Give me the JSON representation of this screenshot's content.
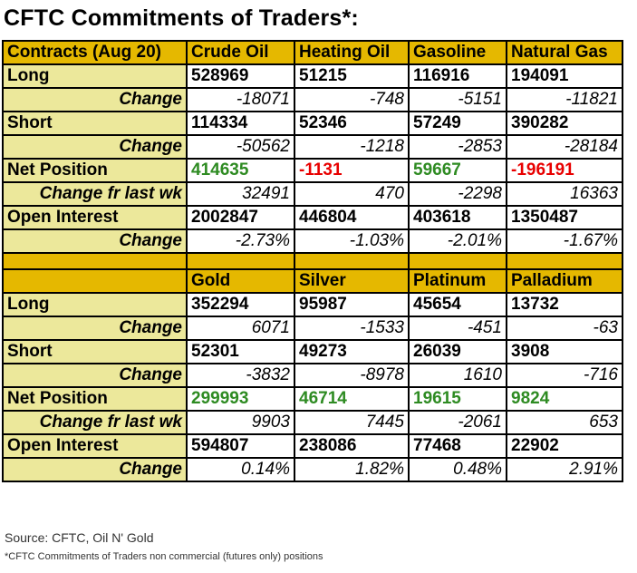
{
  "title": "CFTC Commitments of Traders*:",
  "energy": {
    "header": [
      "Contracts (Aug 20)",
      "Crude Oil",
      "Heating Oil",
      "Gasoline",
      "Natural Gas"
    ],
    "long": [
      "Long",
      "528969",
      "51215",
      "116916",
      "194091"
    ],
    "long_change": [
      "Change",
      "-18071",
      "-748",
      "-5151",
      "-11821"
    ],
    "short": [
      "Short",
      "114334",
      "52346",
      "57249",
      "390282"
    ],
    "short_change": [
      "Change",
      "-50562",
      "-1218",
      "-2853",
      "-28184"
    ],
    "net": [
      "Net Position",
      "414635",
      "-1131",
      "59667",
      "-196191"
    ],
    "net_change": [
      "Change fr last wk",
      "32491",
      "470",
      "-2298",
      "16363"
    ],
    "oi": [
      "Open Interest",
      "2002847",
      "446804",
      "403618",
      "1350487"
    ],
    "oi_change": [
      "Change",
      "-2.73%",
      "-1.03%",
      "-2.01%",
      "-1.67%"
    ]
  },
  "metals": {
    "header": [
      "",
      "Gold",
      "Silver",
      "Platinum",
      "Palladium"
    ],
    "long": [
      "Long",
      "352294",
      "95987",
      "45654",
      "13732"
    ],
    "long_change": [
      "Change",
      "6071",
      "-1533",
      "-451",
      "-63"
    ],
    "short": [
      "Short",
      "52301",
      "49273",
      "26039",
      "3908"
    ],
    "short_change": [
      "Change",
      "-3832",
      "-8978",
      "1610",
      "-716"
    ],
    "net": [
      "Net Position",
      "299993",
      "46714",
      "19615",
      "9824"
    ],
    "net_change": [
      "Change fr last wk",
      "9903",
      "7445",
      "-2061",
      "653"
    ],
    "oi": [
      "Open Interest",
      "594807",
      "238086",
      "77468",
      "22902"
    ],
    "oi_change": [
      "Change",
      "0.14%",
      "1.82%",
      "0.48%",
      "2.91%"
    ]
  },
  "colors": {
    "header_bg": "#e5b800",
    "label_bg": "#ece89b",
    "positive_net": "#2e8b22",
    "negative_net": "#e80000"
  },
  "source": "Source: CFTC, Oil N' Gold",
  "footnote": "*CFTC Commitments of Traders non commercial (futures only) positions"
}
